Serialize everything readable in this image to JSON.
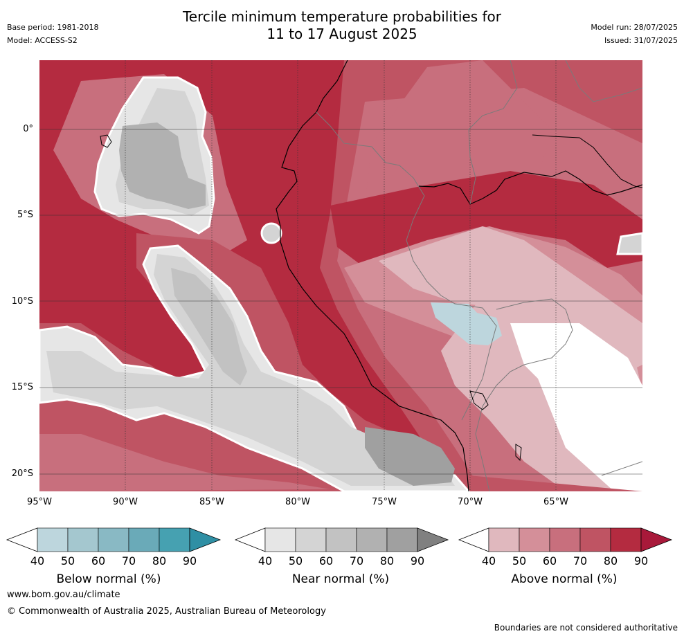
{
  "header": {
    "title_line1": "Tercile minimum temperature probabilities for",
    "title_line2": "11 to 17 August 2025",
    "base_period": "Base period: 1981-2018",
    "model": "Model: ACCESS-S2",
    "model_run": "Model run: 28/07/2025",
    "issued": "Issued: 31/07/2025"
  },
  "map": {
    "lat_labels": [
      "0°",
      "5°S",
      "10°S",
      "15°S",
      "20°S"
    ],
    "lon_labels": [
      "95°W",
      "90°W",
      "85°W",
      "80°W",
      "75°W",
      "70°W",
      "65°W"
    ]
  },
  "colorbars": [
    {
      "name": "below",
      "title": "Below normal (%)",
      "ticks": [
        "40",
        "50",
        "60",
        "70",
        "80",
        "90"
      ],
      "colors": [
        "#bdd6dd",
        "#a4c7cf",
        "#89b9c4",
        "#6aaab8",
        "#46a1b1",
        "#2f8fa4"
      ]
    },
    {
      "name": "near",
      "title": "Near normal (%)",
      "ticks": [
        "40",
        "50",
        "60",
        "70",
        "80",
        "90"
      ],
      "colors": [
        "#e6e6e6",
        "#d4d4d4",
        "#c2c2c2",
        "#b1b1b1",
        "#a0a0a0",
        "#808080"
      ]
    },
    {
      "name": "above",
      "title": "Above normal (%)",
      "ticks": [
        "40",
        "50",
        "60",
        "70",
        "80",
        "90"
      ],
      "colors": [
        "#e0b8be",
        "#d48f99",
        "#c86f7d",
        "#bf5463",
        "#b42b40",
        "#a8193a"
      ]
    }
  ],
  "footer": {
    "url": "www.bom.gov.au/climate",
    "copyright": "© Commonwealth of Australia 2025, Australian Bureau of Meteorology",
    "note": "Boundaries are not considered authoritative"
  }
}
